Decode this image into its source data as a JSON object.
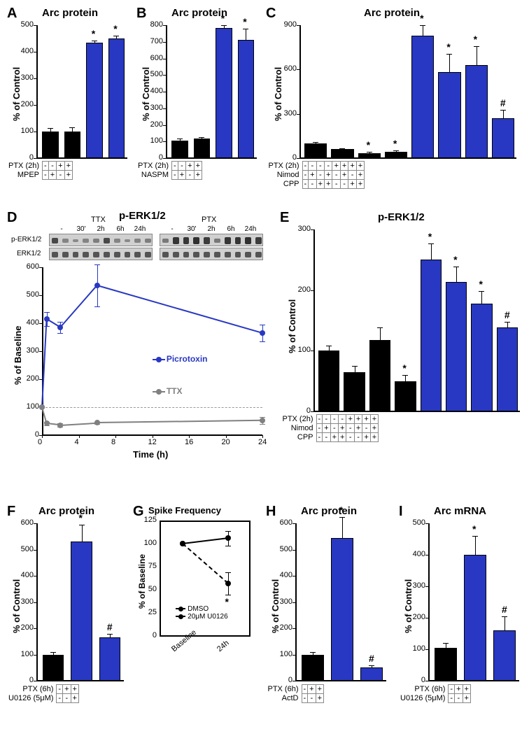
{
  "colors": {
    "black": "#000000",
    "blue": "#2838c2",
    "gray": "#808080",
    "white": "#ffffff"
  },
  "panels": {
    "A": {
      "label": "A",
      "title": "Arc protein",
      "ylabel": "% of Control",
      "ylim": [
        0,
        500
      ],
      "ytick_step": 100,
      "title_fontsize": 15,
      "bars": [
        {
          "val": 100,
          "err": 12,
          "color": "#000000",
          "sig": ""
        },
        {
          "val": 100,
          "err": 15,
          "color": "#000000",
          "sig": ""
        },
        {
          "val": 435,
          "err": 8,
          "color": "#2838c2",
          "sig": "*"
        },
        {
          "val": 450,
          "err": 10,
          "color": "#2838c2",
          "sig": "*"
        }
      ],
      "conds": [
        {
          "label": "PTX (2h)",
          "vals": [
            "-",
            "-",
            "+",
            "+"
          ]
        },
        {
          "label": "MPEP",
          "vals": [
            "-",
            "+",
            "-",
            "+"
          ]
        }
      ]
    },
    "B": {
      "label": "B",
      "title": "Arc protein",
      "ylabel": "% of Control",
      "ylim": [
        0,
        800
      ],
      "ytick_step": 100,
      "title_fontsize": 15,
      "bars": [
        {
          "val": 105,
          "err": 12,
          "color": "#000000",
          "sig": ""
        },
        {
          "val": 120,
          "err": 8,
          "color": "#000000",
          "sig": ""
        },
        {
          "val": 785,
          "err": 15,
          "color": "#2838c2",
          "sig": "*"
        },
        {
          "val": 710,
          "err": 70,
          "color": "#2838c2",
          "sig": "*"
        }
      ],
      "conds": [
        {
          "label": "PTX (2h)",
          "vals": [
            "-",
            "-",
            "+",
            "+"
          ]
        },
        {
          "label": "NASPM",
          "vals": [
            "-",
            "+",
            "-",
            "+"
          ]
        }
      ]
    },
    "C": {
      "label": "C",
      "title": "Arc protein",
      "ylabel": "% of Control",
      "ylim": [
        0,
        900
      ],
      "ytick_step": 300,
      "title_fontsize": 15,
      "bars": [
        {
          "val": 100,
          "err": 10,
          "color": "#000000",
          "sig": ""
        },
        {
          "val": 60,
          "err": 8,
          "color": "#000000",
          "sig": ""
        },
        {
          "val": 35,
          "err": 6,
          "color": "#000000",
          "sig": "*"
        },
        {
          "val": 45,
          "err": 8,
          "color": "#000000",
          "sig": "*"
        },
        {
          "val": 830,
          "err": 70,
          "color": "#2838c2",
          "sig": "*"
        },
        {
          "val": 585,
          "err": 120,
          "color": "#2838c2",
          "sig": "*"
        },
        {
          "val": 630,
          "err": 130,
          "color": "#2838c2",
          "sig": "*"
        },
        {
          "val": 270,
          "err": 55,
          "color": "#2838c2",
          "sig": "#"
        }
      ],
      "conds": [
        {
          "label": "PTX (2h)",
          "vals": [
            "-",
            "-",
            "-",
            "-",
            "+",
            "+",
            "+",
            "+"
          ]
        },
        {
          "label": "Nimod",
          "vals": [
            "-",
            "+",
            "-",
            "+",
            "-",
            "+",
            "-",
            "+"
          ]
        },
        {
          "label": "CPP",
          "vals": [
            "-",
            "-",
            "+",
            "+",
            "-",
            "-",
            "+",
            "+"
          ]
        }
      ]
    },
    "D": {
      "label": "D",
      "title": "p-ERK1/2",
      "ylabel": "% of Baseline",
      "xlabel": "Time (h)",
      "title_fontsize": 15,
      "ylim": [
        0,
        600
      ],
      "xlim": [
        0,
        24
      ],
      "xticks": [
        0,
        4,
        8,
        12,
        16,
        20,
        24
      ],
      "blot_labels_top": [
        "TTX",
        "PTX"
      ],
      "blot_time_labels": [
        "-",
        "30'",
        "2h",
        "6h",
        "24h"
      ],
      "blot_row_labels": [
        "p-ERK1/2",
        "ERK1/2"
      ],
      "series": [
        {
          "name": "Picrotoxin",
          "color": "#2838c2",
          "pts": [
            [
              0,
              100
            ],
            [
              0.5,
              415
            ],
            [
              2,
              385
            ],
            [
              6,
              535
            ],
            [
              24,
              365
            ]
          ],
          "err": [
            0,
            25,
            20,
            75,
            30
          ]
        },
        {
          "name": "TTX",
          "color": "#808080",
          "pts": [
            [
              0,
              100
            ],
            [
              0.5,
              42
            ],
            [
              2,
              36
            ],
            [
              6,
              44
            ],
            [
              24,
              52
            ]
          ],
          "err": [
            0,
            6,
            6,
            4,
            12
          ]
        }
      ],
      "legend": [
        "Picrotoxin",
        "TTX"
      ]
    },
    "E": {
      "label": "E",
      "title": "p-ERK1/2",
      "ylabel": "% of Control",
      "ylim": [
        0,
        300
      ],
      "ytick_step": 100,
      "title_fontsize": 15,
      "bars": [
        {
          "val": 100,
          "err": 8,
          "color": "#000000",
          "sig": ""
        },
        {
          "val": 65,
          "err": 10,
          "color": "#000000",
          "sig": ""
        },
        {
          "val": 118,
          "err": 20,
          "color": "#000000",
          "sig": ""
        },
        {
          "val": 50,
          "err": 10,
          "color": "#000000",
          "sig": "*"
        },
        {
          "val": 250,
          "err": 27,
          "color": "#2838c2",
          "sig": "*"
        },
        {
          "val": 213,
          "err": 26,
          "color": "#2838c2",
          "sig": "*"
        },
        {
          "val": 178,
          "err": 20,
          "color": "#2838c2",
          "sig": "*"
        },
        {
          "val": 138,
          "err": 10,
          "color": "#2838c2",
          "sig": "#"
        }
      ],
      "conds": [
        {
          "label": "PTX (2h)",
          "vals": [
            "-",
            "-",
            "-",
            "-",
            "+",
            "+",
            "+",
            "+"
          ]
        },
        {
          "label": "Nimod",
          "vals": [
            "-",
            "+",
            "-",
            "+",
            "-",
            "+",
            "-",
            "+"
          ]
        },
        {
          "label": "CPP",
          "vals": [
            "-",
            "-",
            "+",
            "+",
            "-",
            "-",
            "+",
            "+"
          ]
        }
      ]
    },
    "F": {
      "label": "F",
      "title": "Arc protein",
      "ylabel": "% of Control",
      "ylim": [
        0,
        600
      ],
      "ytick_step": 100,
      "title_fontsize": 15,
      "bars": [
        {
          "val": 100,
          "err": 10,
          "color": "#000000",
          "sig": ""
        },
        {
          "val": 530,
          "err": 65,
          "color": "#2838c2",
          "sig": "*"
        },
        {
          "val": 165,
          "err": 15,
          "color": "#2838c2",
          "sig": "#"
        }
      ],
      "conds": [
        {
          "label": "PTX (6h)",
          "vals": [
            "-",
            "+",
            "+"
          ]
        },
        {
          "label": "U0126 (5μM)",
          "vals": [
            "-",
            "-",
            "+"
          ]
        }
      ]
    },
    "G": {
      "label": "G",
      "title": "Spike Frequency",
      "ylabel": "% of Baseline",
      "ylim": [
        0,
        125
      ],
      "ytick_step": 25,
      "title_fontsize": 13,
      "xcats": [
        "Baseline",
        "24h"
      ],
      "series": [
        {
          "name": "DMSO",
          "dash": false,
          "pts": [
            100,
            106
          ],
          "err": [
            0,
            8
          ]
        },
        {
          "name": "20μM U0126",
          "dash": true,
          "pts": [
            100,
            57
          ],
          "err": [
            0,
            12
          ],
          "sig": "*"
        }
      ]
    },
    "H": {
      "label": "H",
      "title": "Arc protein",
      "ylabel": "% of Control",
      "ylim": [
        0,
        600
      ],
      "ytick_step": 100,
      "title_fontsize": 15,
      "bars": [
        {
          "val": 100,
          "err": 10,
          "color": "#000000",
          "sig": ""
        },
        {
          "val": 545,
          "err": 80,
          "color": "#2838c2",
          "sig": "*"
        },
        {
          "val": 50,
          "err": 10,
          "color": "#2838c2",
          "sig": "#"
        }
      ],
      "conds": [
        {
          "label": "PTX (6h)",
          "vals": [
            "-",
            "+",
            "+"
          ]
        },
        {
          "label": "ActD",
          "vals": [
            "-",
            "-",
            "+"
          ]
        }
      ]
    },
    "I": {
      "label": "I",
      "title": "Arc mRNA",
      "ylabel": "% of Control",
      "ylim": [
        0,
        500
      ],
      "ytick_step": 100,
      "title_fontsize": 15,
      "bars": [
        {
          "val": 105,
          "err": 15,
          "color": "#000000",
          "sig": ""
        },
        {
          "val": 400,
          "err": 60,
          "color": "#2838c2",
          "sig": "*"
        },
        {
          "val": 160,
          "err": 45,
          "color": "#2838c2",
          "sig": "#"
        }
      ],
      "conds": [
        {
          "label": "PTX (6h)",
          "vals": [
            "-",
            "+",
            "+"
          ]
        },
        {
          "label": "U0126 (5μM)",
          "vals": [
            "-",
            "-",
            "+"
          ]
        }
      ]
    }
  }
}
